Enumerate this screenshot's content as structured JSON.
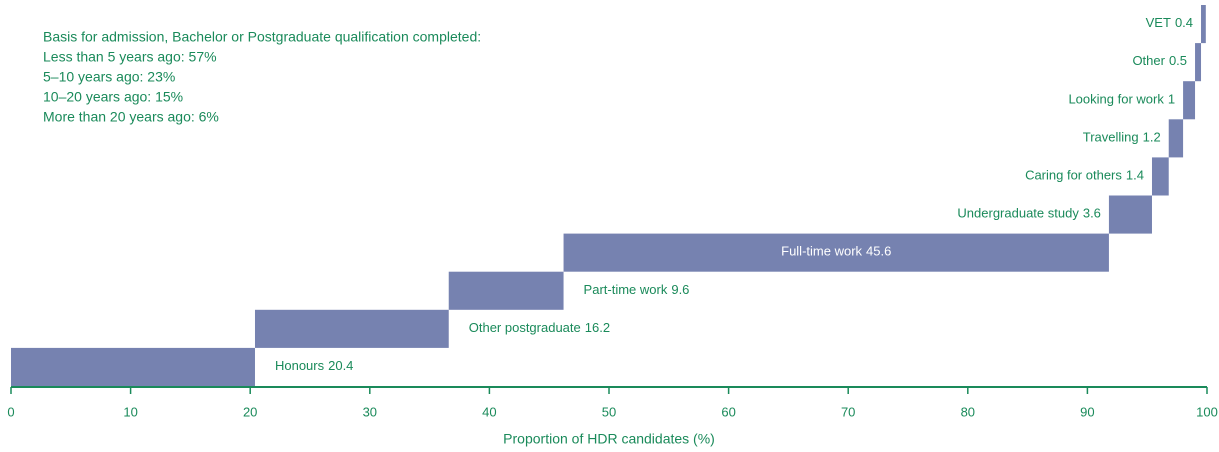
{
  "chart_data": {
    "type": "bar",
    "orientation": "horizontal-cascade",
    "xlabel": "Proportion of HDR candidates (%)",
    "annotation": {
      "title": "Basis for admission, Bachelor or Postgraduate qualification completed:",
      "lines": [
        "Less than 5 years ago: 57%",
        "5–10 years ago: 23%",
        "10–20 years ago: 15%",
        "More than 20 years ago: 6%"
      ]
    },
    "categories": [
      "Honours",
      "Other postgraduate",
      "Part-time work",
      "Full-time work",
      "Undergraduate study",
      "Caring for others",
      "Travelling",
      "Looking for work",
      "Other",
      "VET"
    ],
    "values": [
      20.4,
      16.2,
      9.6,
      45.6,
      3.6,
      1.4,
      1.2,
      1,
      0.5,
      0.4
    ],
    "color": "#7682b0",
    "xlim": [
      0,
      100
    ],
    "xticks": [
      0,
      10,
      20,
      30,
      40,
      50,
      60,
      70,
      80,
      90,
      100
    ]
  }
}
